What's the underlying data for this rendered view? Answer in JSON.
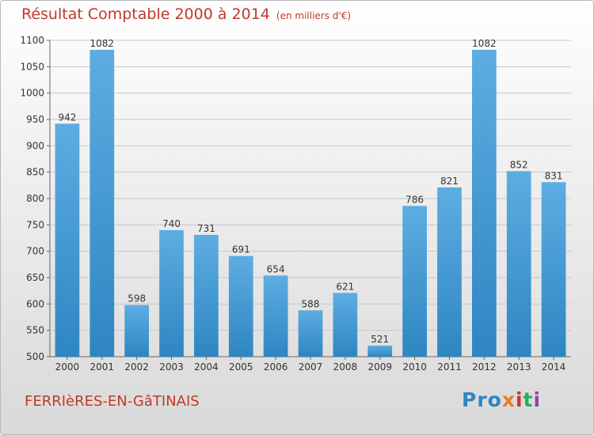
{
  "chart_data": {
    "type": "bar",
    "title": "Résultat Comptable 2000 à 2014",
    "subtitle": "(en milliers d'€)",
    "categories": [
      "2000",
      "2001",
      "2002",
      "2003",
      "2004",
      "2005",
      "2006",
      "2007",
      "2008",
      "2009",
      "2010",
      "2011",
      "2012",
      "2013",
      "2014"
    ],
    "values": [
      942,
      1082,
      598,
      740,
      731,
      691,
      654,
      588,
      621,
      521,
      786,
      821,
      1082,
      852,
      831
    ],
    "ylim": [
      500,
      1100
    ],
    "yticks": [
      500,
      550,
      600,
      650,
      700,
      750,
      800,
      850,
      900,
      950,
      1000,
      1050,
      1100
    ],
    "grid": true,
    "bar_color_light": "#5dade2",
    "bar_color_dark": "#2e86c1"
  },
  "footer": {
    "commune": "FERRIèRES-EN-GâTINAIS",
    "logo": [
      "Pro",
      "x",
      "i",
      "t",
      "i"
    ]
  },
  "colors": {
    "title": "#c0392b",
    "grid": "#c8c8c8"
  }
}
